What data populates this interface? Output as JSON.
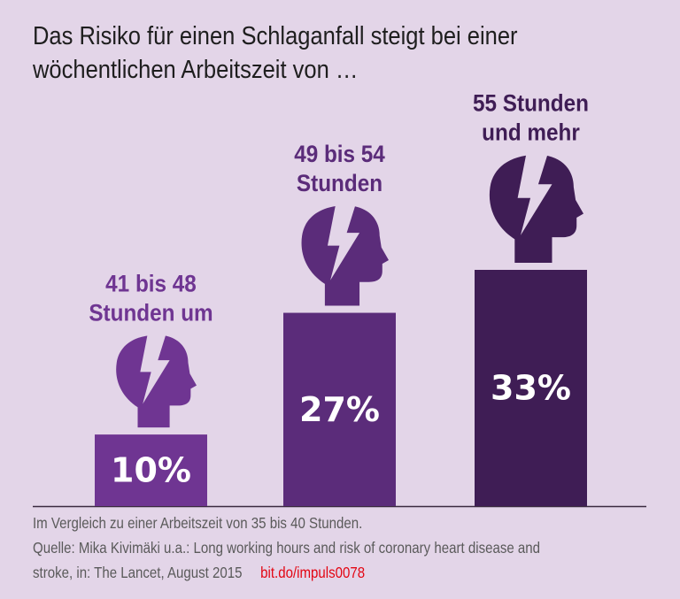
{
  "title": "Das Risiko für einen Schlaganfall steigt bei einer wöchentlichen Arbeitszeit von …",
  "chart_data": {
    "type": "bar",
    "categories": [
      [
        "41 bis 48",
        "Stunden um"
      ],
      [
        "49 bis 54",
        "Stunden"
      ],
      [
        "55 Stunden",
        "und mehr"
      ]
    ],
    "values": [
      10,
      27,
      33
    ],
    "value_labels": [
      "10%",
      "27%",
      "33%"
    ],
    "unit": "%",
    "ylim": [
      0,
      33
    ],
    "grid": false,
    "colors": [
      "#6f3592",
      "#5b2c7a",
      "#3f1d55"
    ],
    "label_colors": [
      "#6f3592",
      "#5b2c7a",
      "#3f1d55"
    ],
    "icon": "head-lightning-icon"
  },
  "footer": {
    "note": "Im Vergleich zu einer Arbeitszeit von 35 bis 40 Stunden.",
    "source": "Quelle: Mika Kivimäki u.a.: Long working hours and risk of coronary heart disease and stroke, in: The Lancet, August 2015",
    "link": "bit.do/impuls0078"
  },
  "colors": {
    "background": "#e3d5e8",
    "link": "#e30613"
  }
}
